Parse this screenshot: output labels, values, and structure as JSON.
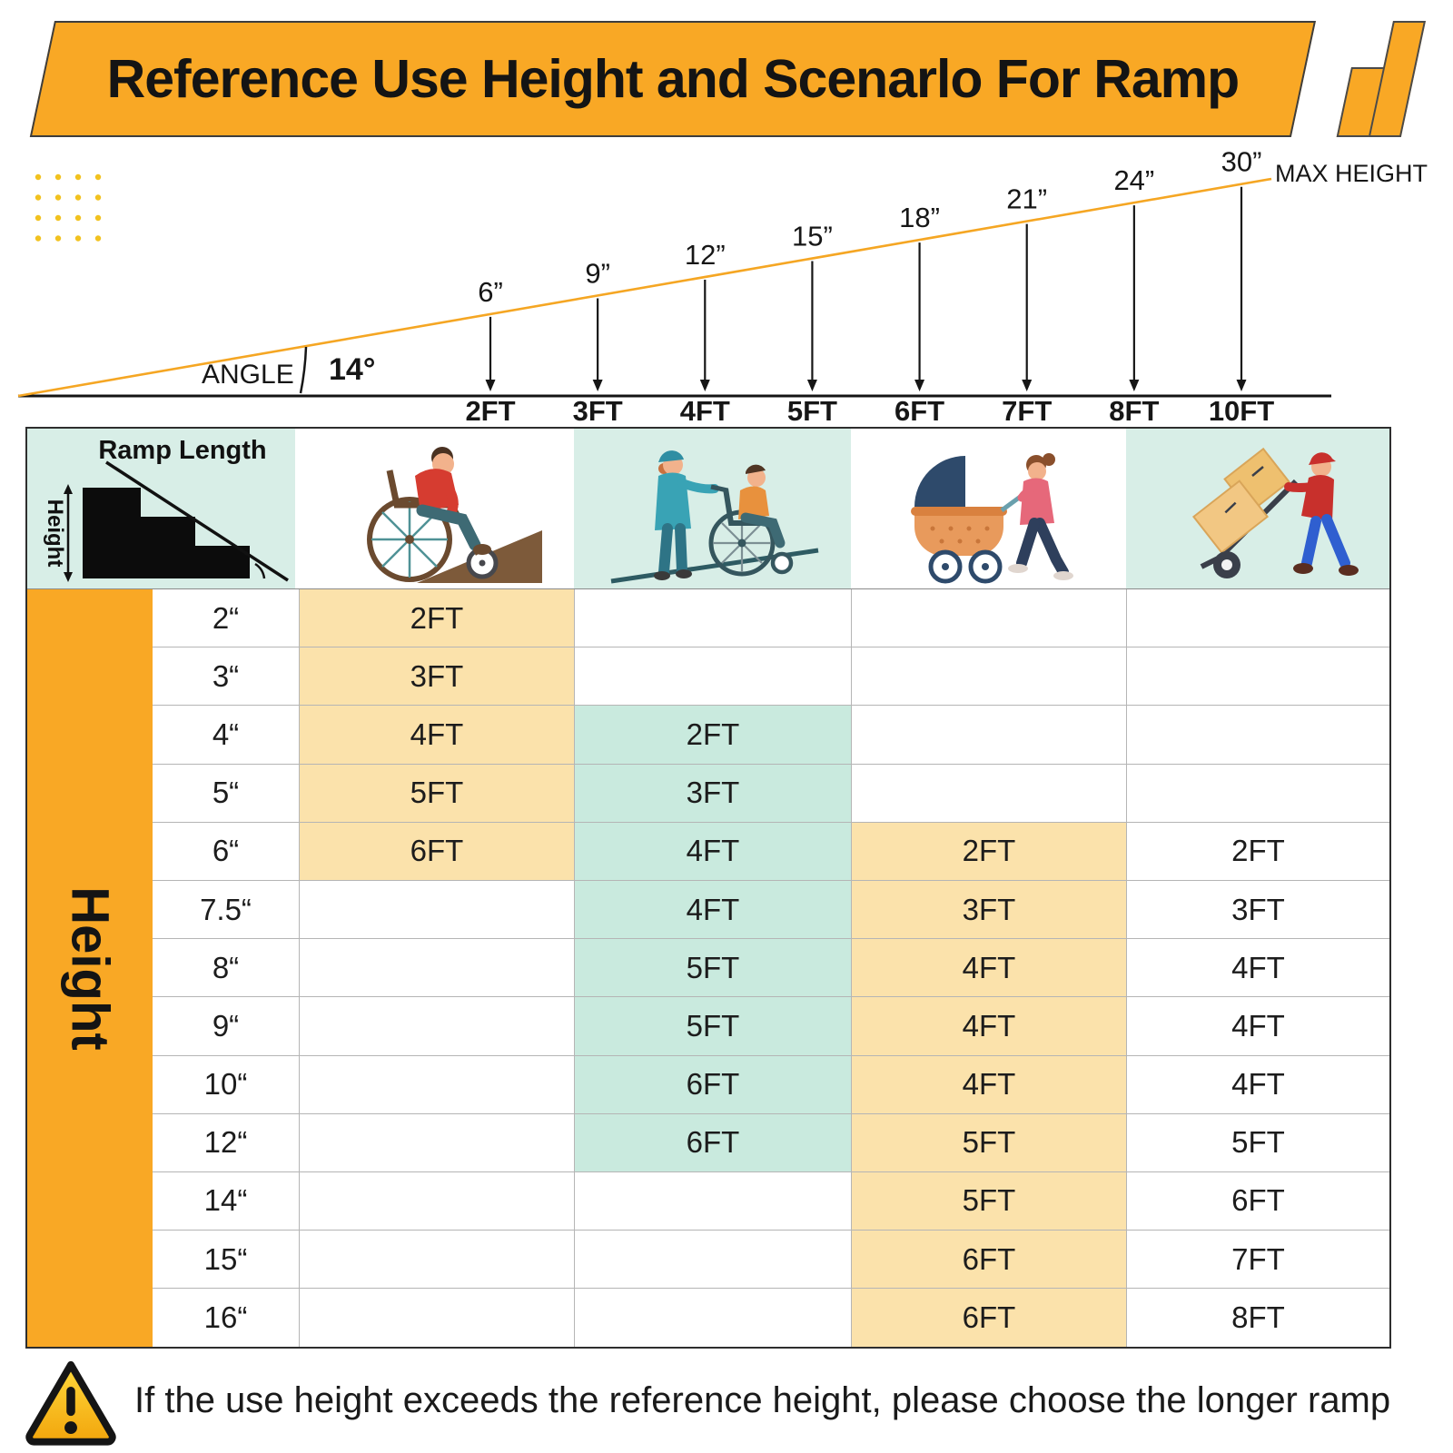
{
  "title": "Reference Use Height and Scenarlo For Ramp",
  "diagram": {
    "angle_label": "ANGLE",
    "angle_value": "14°",
    "max_height_label": "MAX HEIGHT",
    "points": [
      {
        "length": "2FT",
        "height": "6”"
      },
      {
        "length": "3FT",
        "height": "9”"
      },
      {
        "length": "4FT",
        "height": "12”"
      },
      {
        "length": "5FT",
        "height": "15”"
      },
      {
        "length": "6FT",
        "height": "18”"
      },
      {
        "length": "7FT",
        "height": "21”"
      },
      {
        "length": "8FT",
        "height": "24”"
      },
      {
        "length": "10FT",
        "height": "30”"
      }
    ]
  },
  "table": {
    "corner": {
      "ramp_length_label": "Ramp Length",
      "height_label": "Height"
    },
    "axis_label": "Height",
    "scenarios": [
      {
        "icon": "manual-wheelchair-icon",
        "name": "wheelchair self-propelled"
      },
      {
        "icon": "assisted-wheelchair-icon",
        "name": "wheelchair pushed by caregiver"
      },
      {
        "icon": "baby-stroller-icon",
        "name": "baby stroller"
      },
      {
        "icon": "hand-truck-icon",
        "name": "hand truck / dolly"
      }
    ],
    "rows": [
      {
        "height": "2“",
        "cells": [
          "2FT",
          "",
          "",
          ""
        ]
      },
      {
        "height": "3“",
        "cells": [
          "3FT",
          "",
          "",
          ""
        ]
      },
      {
        "height": "4“",
        "cells": [
          "4FT",
          "2FT",
          "",
          ""
        ]
      },
      {
        "height": "5“",
        "cells": [
          "5FT",
          "3FT",
          "",
          ""
        ]
      },
      {
        "height": "6“",
        "cells": [
          "6FT",
          "4FT",
          "2FT",
          "2FT"
        ]
      },
      {
        "height": "7.5“",
        "cells": [
          "",
          "4FT",
          "3FT",
          "3FT"
        ]
      },
      {
        "height": "8“",
        "cells": [
          "",
          "5FT",
          "4FT",
          "4FT"
        ]
      },
      {
        "height": "9“",
        "cells": [
          "",
          "5FT",
          "4FT",
          "4FT"
        ]
      },
      {
        "height": "10“",
        "cells": [
          "",
          "6FT",
          "4FT",
          "4FT"
        ]
      },
      {
        "height": "12“",
        "cells": [
          "",
          "6FT",
          "5FT",
          "5FT"
        ]
      },
      {
        "height": "14“",
        "cells": [
          "",
          "",
          "5FT",
          "6FT"
        ]
      },
      {
        "height": "15“",
        "cells": [
          "",
          "",
          "6FT",
          "7FT"
        ]
      },
      {
        "height": "16“",
        "cells": [
          "",
          "",
          "6FT",
          "8FT"
        ]
      }
    ],
    "fills": [
      {
        "col": 0,
        "from": 0,
        "to": 4,
        "color_key": "cream"
      },
      {
        "col": 1,
        "from": 2,
        "to": 9,
        "color_key": "teal"
      },
      {
        "col": 2,
        "from": 4,
        "to": 12,
        "color_key": "cream"
      }
    ]
  },
  "footer": {
    "note": "If the use height exceeds the reference height, please choose the longer ramp"
  },
  "colors": {
    "banner_orange": "#F9A825",
    "slope_line_orange": "#F5A623",
    "dot_yellow": "#F2C21F",
    "mint_header": "#D8EEE7",
    "cream": "#FBE2AB",
    "teal": "#C9EADE",
    "warning_yellow": "#FFC10E"
  },
  "chart_data": [
    {
      "type": "line",
      "title": "Ramp length vs maximum use height at 14° angle",
      "x": [
        2,
        3,
        4,
        5,
        6,
        7,
        8,
        10
      ],
      "xlabel": "Ramp length (FT)",
      "y": [
        6,
        9,
        12,
        15,
        18,
        21,
        24,
        30
      ],
      "ylabel": "Max height (inches)",
      "annotations": [
        "ANGLE 14°",
        "MAX HEIGHT"
      ],
      "legend_position": "none",
      "grid": false
    },
    {
      "type": "table",
      "title": "Recommended ramp length by rise height and scenario",
      "columns": [
        "Height",
        "Wheelchair self-propelled",
        "Wheelchair assisted",
        "Baby stroller",
        "Hand truck"
      ],
      "rows": [
        [
          "2\"",
          "2FT",
          "",
          "",
          ""
        ],
        [
          "3\"",
          "3FT",
          "",
          "",
          ""
        ],
        [
          "4\"",
          "4FT",
          "2FT",
          "",
          ""
        ],
        [
          "5\"",
          "5FT",
          "3FT",
          "",
          ""
        ],
        [
          "6\"",
          "6FT",
          "4FT",
          "2FT",
          "2FT"
        ],
        [
          "7.5\"",
          "",
          "4FT",
          "3FT",
          "3FT"
        ],
        [
          "8\"",
          "",
          "5FT",
          "4FT",
          "4FT"
        ],
        [
          "9\"",
          "",
          "5FT",
          "4FT",
          "4FT"
        ],
        [
          "10\"",
          "",
          "6FT",
          "4FT",
          "4FT"
        ],
        [
          "12\"",
          "",
          "6FT",
          "5FT",
          "5FT"
        ],
        [
          "14\"",
          "",
          "",
          "5FT",
          "6FT"
        ],
        [
          "15\"",
          "",
          "",
          "6FT",
          "7FT"
        ],
        [
          "16\"",
          "",
          "",
          "6FT",
          "8FT"
        ]
      ]
    }
  ]
}
